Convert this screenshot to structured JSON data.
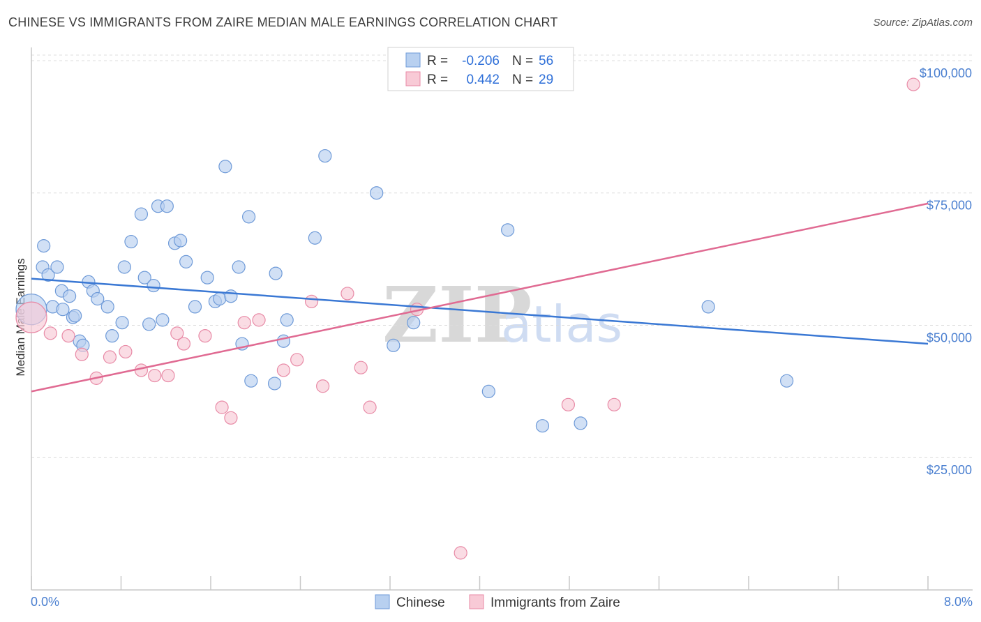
{
  "title": "CHINESE VS IMMIGRANTS FROM ZAIRE MEDIAN MALE EARNINGS CORRELATION CHART",
  "source": "Source: ZipAtlas.com",
  "watermark": {
    "zip": "ZIP",
    "atlas": "atlas"
  },
  "chart_data": {
    "type": "scatter",
    "title": "CHINESE VS IMMIGRANTS FROM ZAIRE MEDIAN MALE EARNINGS CORRELATION CHART",
    "xlabel": "",
    "ylabel": "Median Male Earnings",
    "xlim": [
      0,
      8
    ],
    "ylim": [
      0,
      105000
    ],
    "x_tick_labels": {
      "left": "0.0%",
      "right": "8.0%"
    },
    "y_ticks": [
      {
        "value": 25000,
        "label": "$25,000"
      },
      {
        "value": 50000,
        "label": "$50,000"
      },
      {
        "value": 75000,
        "label": "$75,000"
      },
      {
        "value": 100000,
        "label": "$100,000"
      }
    ],
    "colors": {
      "chinese_fill": "#b8d0f0",
      "chinese_stroke": "#6e9ad8",
      "chinese_line": "#3a78d4",
      "zaire_fill": "#f8cad6",
      "zaire_stroke": "#e88aa6",
      "zaire_line": "#e06a92",
      "tick_text": "#4a7fd0",
      "legend_value": "#2e6fd8"
    },
    "legend": {
      "rows": [
        {
          "r_label": "R =",
          "r_value": "-0.206",
          "n_label": "N =",
          "n_value": "56"
        },
        {
          "r_label": "R =",
          "r_value": "0.442",
          "n_label": "N =",
          "n_value": "29"
        }
      ]
    },
    "series": [
      {
        "name": "Chinese",
        "trend": {
          "x": [
            0.0,
            8.0
          ],
          "y": [
            58800,
            46500
          ]
        },
        "points": [
          [
            0.0,
            53000
          ],
          [
            0.1,
            61000
          ],
          [
            0.11,
            65000
          ],
          [
            0.15,
            59500
          ],
          [
            0.23,
            61000
          ],
          [
            0.19,
            53500
          ],
          [
            0.27,
            56500
          ],
          [
            0.28,
            53000
          ],
          [
            0.34,
            55500
          ],
          [
            0.37,
            51500
          ],
          [
            0.39,
            51800
          ],
          [
            0.43,
            47000
          ],
          [
            0.46,
            46200
          ],
          [
            0.51,
            58200
          ],
          [
            0.55,
            56500
          ],
          [
            0.59,
            55000
          ],
          [
            0.68,
            53500
          ],
          [
            0.72,
            48000
          ],
          [
            0.81,
            50500
          ],
          [
            0.83,
            61000
          ],
          [
            0.89,
            65800
          ],
          [
            0.98,
            71000
          ],
          [
            1.01,
            59000
          ],
          [
            1.05,
            50200
          ],
          [
            1.09,
            57500
          ],
          [
            1.13,
            72500
          ],
          [
            1.17,
            51000
          ],
          [
            1.21,
            72500
          ],
          [
            1.28,
            65500
          ],
          [
            1.33,
            66000
          ],
          [
            1.38,
            62000
          ],
          [
            1.46,
            53500
          ],
          [
            1.57,
            59000
          ],
          [
            1.64,
            54500
          ],
          [
            1.68,
            55000
          ],
          [
            1.73,
            80000
          ],
          [
            1.78,
            55500
          ],
          [
            1.85,
            61000
          ],
          [
            1.88,
            46500
          ],
          [
            1.94,
            70500
          ],
          [
            1.96,
            39500
          ],
          [
            2.17,
            39000
          ],
          [
            2.18,
            59800
          ],
          [
            2.25,
            47000
          ],
          [
            2.28,
            51000
          ],
          [
            2.53,
            66500
          ],
          [
            2.62,
            82000
          ],
          [
            3.08,
            75000
          ],
          [
            3.23,
            46200
          ],
          [
            3.41,
            50500
          ],
          [
            4.08,
            37500
          ],
          [
            4.25,
            68000
          ],
          [
            4.56,
            31000
          ],
          [
            6.04,
            53500
          ],
          [
            6.74,
            39500
          ],
          [
            4.9,
            31500
          ]
        ]
      },
      {
        "name": "Immigrants from Zaire",
        "trend": {
          "x": [
            0.0,
            8.0
          ],
          "y": [
            37500,
            73000
          ]
        },
        "points": [
          [
            0.0,
            51500
          ],
          [
            0.17,
            48500
          ],
          [
            0.33,
            48000
          ],
          [
            0.45,
            44500
          ],
          [
            0.58,
            40000
          ],
          [
            0.7,
            44000
          ],
          [
            0.84,
            45000
          ],
          [
            0.98,
            41500
          ],
          [
            1.1,
            40500
          ],
          [
            1.22,
            40500
          ],
          [
            1.3,
            48500
          ],
          [
            1.36,
            46500
          ],
          [
            1.55,
            48000
          ],
          [
            1.7,
            34500
          ],
          [
            1.78,
            32500
          ],
          [
            1.9,
            50500
          ],
          [
            2.03,
            51000
          ],
          [
            2.25,
            41500
          ],
          [
            2.37,
            43500
          ],
          [
            2.5,
            54500
          ],
          [
            2.6,
            38500
          ],
          [
            2.82,
            56000
          ],
          [
            2.94,
            42000
          ],
          [
            3.02,
            34500
          ],
          [
            3.44,
            53000
          ],
          [
            3.83,
            7000
          ],
          [
            4.79,
            35000
          ],
          [
            7.87,
            95500
          ],
          [
            5.2,
            35000
          ]
        ]
      }
    ]
  }
}
